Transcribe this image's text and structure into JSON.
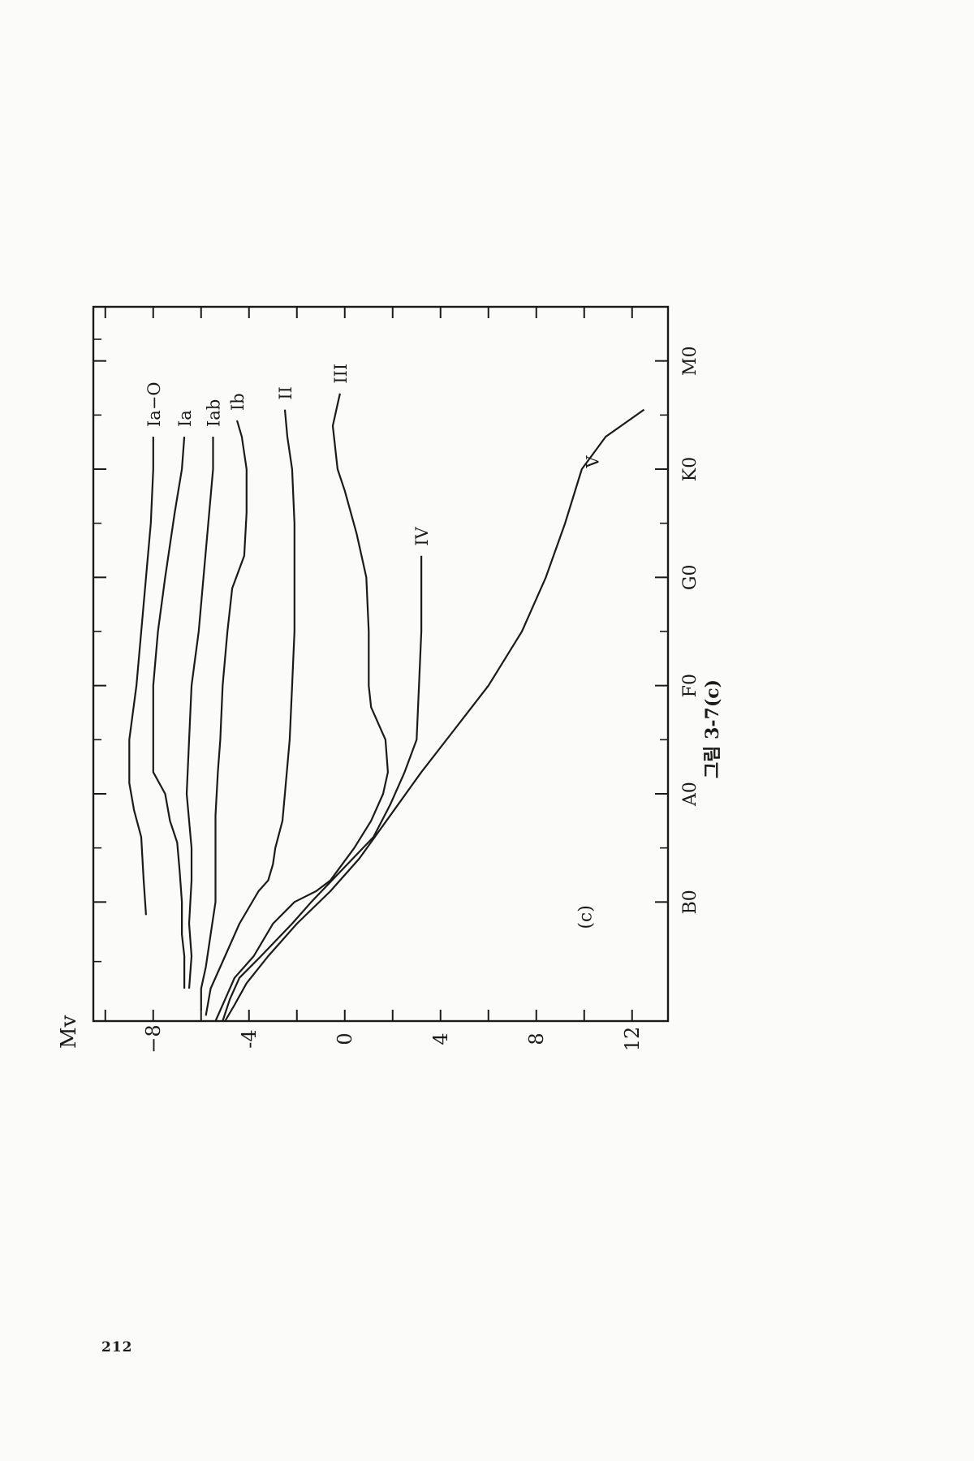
{
  "page": {
    "number": "212"
  },
  "chart_data": {
    "type": "line",
    "panel_label": "(c)",
    "caption": "그림 3-7(c)",
    "ylabel": "Mv",
    "ylim": [
      -10.5,
      13.5
    ],
    "y_tick_labels": [
      {
        "value": -8,
        "label": "−8"
      },
      {
        "value": -4,
        "label": "-4"
      },
      {
        "value": 0,
        "label": "0"
      },
      {
        "value": 4,
        "label": "4"
      },
      {
        "value": 8,
        "label": "8"
      },
      {
        "value": 12,
        "label": "12"
      }
    ],
    "y_minor_ticks": [
      -10,
      -6,
      -2,
      2,
      6,
      10
    ],
    "x_labels": [
      "B0",
      "A0",
      "F0",
      "G0",
      "K0",
      "M0"
    ],
    "xlim": [
      -1.1,
      5.5
    ],
    "series": [
      {
        "name": "Ia−O",
        "points": [
          [
            -0.12,
            -8.3
          ],
          [
            0.2,
            -8.4
          ],
          [
            0.6,
            -8.5
          ],
          [
            0.85,
            -8.8
          ],
          [
            1.1,
            -9.0
          ],
          [
            1.5,
            -9.0
          ],
          [
            2.0,
            -8.7
          ],
          [
            2.5,
            -8.5
          ],
          [
            3.0,
            -8.3
          ],
          [
            3.5,
            -8.1
          ],
          [
            4.0,
            -8.0
          ],
          [
            4.3,
            -8.0
          ]
        ]
      },
      {
        "name": "Ia",
        "points": [
          [
            -0.8,
            -6.7
          ],
          [
            -0.5,
            -6.7
          ],
          [
            -0.3,
            -6.8
          ],
          [
            0,
            -6.8
          ],
          [
            0.3,
            -6.9
          ],
          [
            0.55,
            -7.0
          ],
          [
            0.75,
            -7.3
          ],
          [
            1.0,
            -7.5
          ],
          [
            1.2,
            -8.0
          ],
          [
            1.5,
            -8.0
          ],
          [
            2.0,
            -8.0
          ],
          [
            2.5,
            -7.8
          ],
          [
            3.0,
            -7.5
          ],
          [
            3.6,
            -7.1
          ],
          [
            4.0,
            -6.8
          ],
          [
            4.3,
            -6.7
          ]
        ]
      },
      {
        "name": "Iab",
        "points": [
          [
            -0.8,
            -6.5
          ],
          [
            -0.5,
            -6.4
          ],
          [
            -0.2,
            -6.5
          ],
          [
            0.2,
            -6.4
          ],
          [
            0.5,
            -6.4
          ],
          [
            0.75,
            -6.5
          ],
          [
            1.0,
            -6.6
          ],
          [
            1.5,
            -6.5
          ],
          [
            2.0,
            -6.4
          ],
          [
            2.5,
            -6.1
          ],
          [
            3.0,
            -5.9
          ],
          [
            3.5,
            -5.7
          ],
          [
            4.0,
            -5.5
          ],
          [
            4.3,
            -5.5
          ]
        ]
      },
      {
        "name": "Ib",
        "points": [
          [
            -1.0,
            -6.0
          ],
          [
            -0.8,
            -6.0
          ],
          [
            -0.6,
            -5.8
          ],
          [
            -0.3,
            -5.6
          ],
          [
            0,
            -5.4
          ],
          [
            0.4,
            -5.4
          ],
          [
            0.8,
            -5.4
          ],
          [
            1.2,
            -5.3
          ],
          [
            1.5,
            -5.2
          ],
          [
            2.0,
            -5.1
          ],
          [
            2.5,
            -4.9
          ],
          [
            2.9,
            -4.7
          ],
          [
            3.2,
            -4.2
          ],
          [
            3.6,
            -4.1
          ],
          [
            4.0,
            -4.1
          ],
          [
            4.3,
            -4.3
          ],
          [
            4.45,
            -4.5
          ]
        ]
      },
      {
        "name": "II",
        "points": [
          [
            -1.05,
            -5.8
          ],
          [
            -0.8,
            -5.6
          ],
          [
            -0.5,
            -5.0
          ],
          [
            -0.2,
            -4.4
          ],
          [
            0.1,
            -3.6
          ],
          [
            0.2,
            -3.2
          ],
          [
            0.35,
            -3.0
          ],
          [
            0.5,
            -2.9
          ],
          [
            0.75,
            -2.6
          ],
          [
            1.0,
            -2.5
          ],
          [
            1.5,
            -2.3
          ],
          [
            2.0,
            -2.2
          ],
          [
            2.5,
            -2.1
          ],
          [
            3.0,
            -2.1
          ],
          [
            3.5,
            -2.1
          ],
          [
            4.0,
            -2.2
          ],
          [
            4.3,
            -2.4
          ],
          [
            4.55,
            -2.5
          ]
        ]
      },
      {
        "name": "III",
        "points": [
          [
            -1.1,
            -5.4
          ],
          [
            -0.9,
            -5.0
          ],
          [
            -0.7,
            -4.6
          ],
          [
            -0.5,
            -3.8
          ],
          [
            -0.2,
            -3.0
          ],
          [
            0,
            -2.1
          ],
          [
            0.1,
            -1.2
          ],
          [
            0.2,
            -0.6
          ],
          [
            0.5,
            0.4
          ],
          [
            0.75,
            1.1
          ],
          [
            1.0,
            1.6
          ],
          [
            1.2,
            1.8
          ],
          [
            1.5,
            1.7
          ],
          [
            1.8,
            1.1
          ],
          [
            2.0,
            1.0
          ],
          [
            2.5,
            1.0
          ],
          [
            3.0,
            0.9
          ],
          [
            3.4,
            0.5
          ],
          [
            3.8,
            0
          ],
          [
            4.0,
            -0.3
          ],
          [
            4.4,
            -0.5
          ],
          [
            4.6,
            -0.3
          ],
          [
            4.7,
            -0.2
          ]
        ]
      },
      {
        "name": "IV",
        "points": [
          [
            -1.1,
            -5.1
          ],
          [
            -0.9,
            -4.8
          ],
          [
            -0.7,
            -4.4
          ],
          [
            -0.5,
            -3.5
          ],
          [
            -0.2,
            -2.2
          ],
          [
            0,
            -1.4
          ],
          [
            0.3,
            -0.1
          ],
          [
            0.6,
            1.2
          ],
          [
            0.9,
            1.9
          ],
          [
            1.2,
            2.5
          ],
          [
            1.5,
            3.0
          ],
          [
            2.0,
            3.1
          ],
          [
            2.5,
            3.2
          ],
          [
            3.0,
            3.2
          ],
          [
            3.2,
            3.2
          ]
        ]
      },
      {
        "name": "V",
        "points": [
          [
            -1.1,
            -5.0
          ],
          [
            -0.95,
            -4.6
          ],
          [
            -0.75,
            -4.1
          ],
          [
            -0.5,
            -3.2
          ],
          [
            -0.2,
            -2.0
          ],
          [
            0.1,
            -0.6
          ],
          [
            0.4,
            0.6
          ],
          [
            0.8,
            1.9
          ],
          [
            1.2,
            3.2
          ],
          [
            1.6,
            4.6
          ],
          [
            2.0,
            6.0
          ],
          [
            2.5,
            7.4
          ],
          [
            3.0,
            8.4
          ],
          [
            3.5,
            9.2
          ],
          [
            4.0,
            9.9
          ],
          [
            4.3,
            10.9
          ],
          [
            4.55,
            12.5
          ]
        ]
      }
    ],
    "curve_labels": [
      "Ia−O",
      "Ia",
      "Iab",
      "Ib",
      "II",
      "III",
      "IV",
      "V"
    ]
  }
}
